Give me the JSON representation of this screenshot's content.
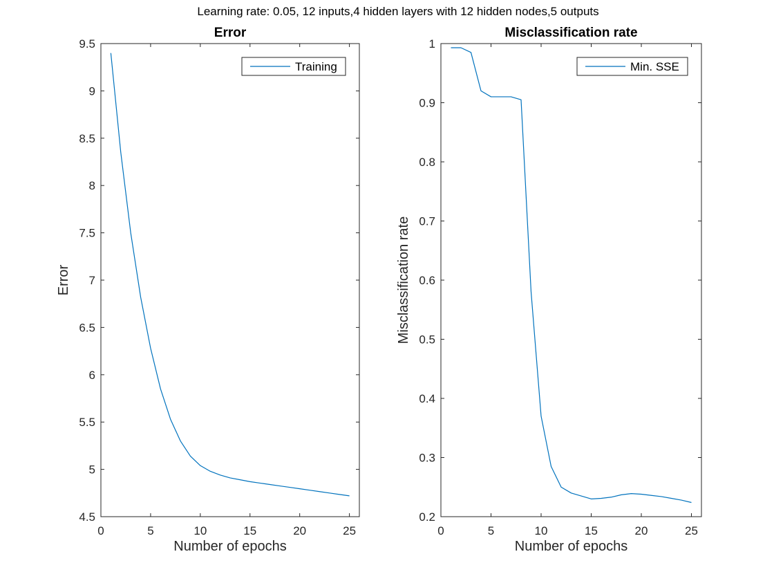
{
  "figure": {
    "suptitle": "Learning rate: 0.05, 12 inputs,4 hidden layers with 12 hidden nodes,5 outputs"
  },
  "colors": {
    "series": "#0072BD",
    "axes": "#262626",
    "background": "#ffffff"
  },
  "chart_data": [
    {
      "type": "line",
      "title": "Error",
      "xlabel": "Number of epochs",
      "ylabel": "Error",
      "xlim": [
        0,
        26
      ],
      "ylim": [
        4.5,
        9.5
      ],
      "xticks": [
        0,
        5,
        10,
        15,
        20,
        25
      ],
      "xtick_labels": [
        "0",
        "5",
        "10",
        "15",
        "20",
        "25"
      ],
      "yticks": [
        4.5,
        5,
        5.5,
        6,
        6.5,
        7,
        7.5,
        8,
        8.5,
        9,
        9.5
      ],
      "ytick_labels": [
        "4.5",
        "5",
        "5.5",
        "6",
        "6.5",
        "7",
        "7.5",
        "8",
        "8.5",
        "9",
        "9.5"
      ],
      "grid": false,
      "legend": "top-right",
      "series": [
        {
          "name": "Training",
          "x": [
            1,
            2,
            3,
            4,
            5,
            6,
            7,
            8,
            9,
            10,
            11,
            12,
            13,
            14,
            15,
            16,
            17,
            18,
            19,
            20,
            21,
            22,
            23,
            24,
            25
          ],
          "y": [
            9.4,
            8.35,
            7.5,
            6.82,
            6.28,
            5.85,
            5.53,
            5.3,
            5.14,
            5.04,
            4.98,
            4.94,
            4.91,
            4.89,
            4.87,
            4.855,
            4.84,
            4.825,
            4.81,
            4.795,
            4.78,
            4.765,
            4.75,
            4.735,
            4.72
          ]
        }
      ]
    },
    {
      "type": "line",
      "title": "Misclassification rate",
      "xlabel": "Number of epochs",
      "ylabel": "Misclassification rate",
      "xlim": [
        0,
        26
      ],
      "ylim": [
        0.2,
        1
      ],
      "xticks": [
        0,
        5,
        10,
        15,
        20,
        25
      ],
      "xtick_labels": [
        "0",
        "5",
        "10",
        "15",
        "20",
        "25"
      ],
      "yticks": [
        0.2,
        0.3,
        0.4,
        0.5,
        0.6,
        0.7,
        0.8,
        0.9,
        1
      ],
      "ytick_labels": [
        "0.2",
        "0.3",
        "0.4",
        "0.5",
        "0.6",
        "0.7",
        "0.8",
        "0.9",
        "1"
      ],
      "grid": false,
      "legend": "top-right",
      "series": [
        {
          "name": "Min. SSE",
          "x": [
            1,
            2,
            3,
            4,
            5,
            6,
            7,
            8,
            9,
            10,
            11,
            12,
            13,
            14,
            15,
            16,
            17,
            18,
            19,
            20,
            21,
            22,
            23,
            24,
            25
          ],
          "y": [
            0.993,
            0.993,
            0.985,
            0.92,
            0.91,
            0.91,
            0.91,
            0.905,
            0.58,
            0.37,
            0.285,
            0.25,
            0.24,
            0.235,
            0.23,
            0.231,
            0.233,
            0.237,
            0.239,
            0.238,
            0.236,
            0.234,
            0.231,
            0.228,
            0.224
          ]
        }
      ]
    }
  ]
}
